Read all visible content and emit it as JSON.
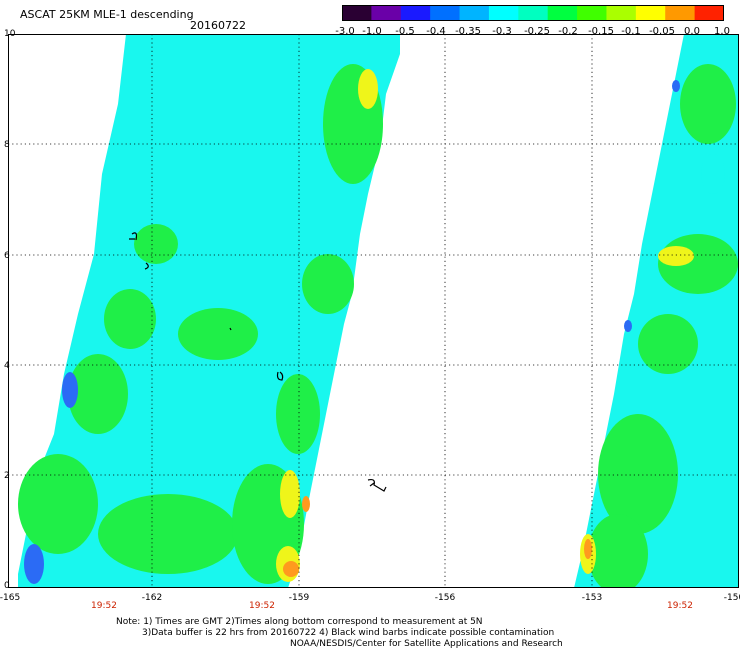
{
  "header": {
    "title": "ASCAT 25KM MLE-1 descending",
    "date": "20160722"
  },
  "colorbar": {
    "labels": [
      "-3.0",
      "-1.0",
      "-0.5",
      "-0.4",
      "-0.35",
      "-0.3",
      "-0.25",
      "-0.2",
      "-0.15",
      "-0.1",
      "-0.05",
      "0.0",
      "1.0"
    ],
    "colors": [
      "#2a0033",
      "#6a00a8",
      "#1a1aff",
      "#0070ff",
      "#00b4ff",
      "#00ffff",
      "#00ffc0",
      "#00ff40",
      "#40ff00",
      "#aaff00",
      "#ffff00",
      "#ff9900",
      "#ff2200"
    ]
  },
  "map": {
    "y_labels": [
      "10",
      "8",
      "6",
      "4",
      "2",
      "0"
    ],
    "x_labels": [
      "-165",
      "-162",
      "-159",
      "-156",
      "-153",
      "-150"
    ],
    "time_labels": [
      "19:52",
      "19:52",
      "19:52"
    ],
    "colors": {
      "cyan": "#19f7ee",
      "green": "#1fef48",
      "yellow": "#eff51a",
      "orange": "#ff9a1e",
      "blue": "#2b6bf5"
    }
  },
  "notes": {
    "line1": "Note: 1) Times are GMT 2)Times along bottom correspond to measurement at 5N",
    "line2": "3)Data buffer is 22 hrs from 20160722 4) Black wind barbs indicate possible contamination",
    "line3": "NOAA/NESDIS/Center for Satellite Applications and Research"
  }
}
